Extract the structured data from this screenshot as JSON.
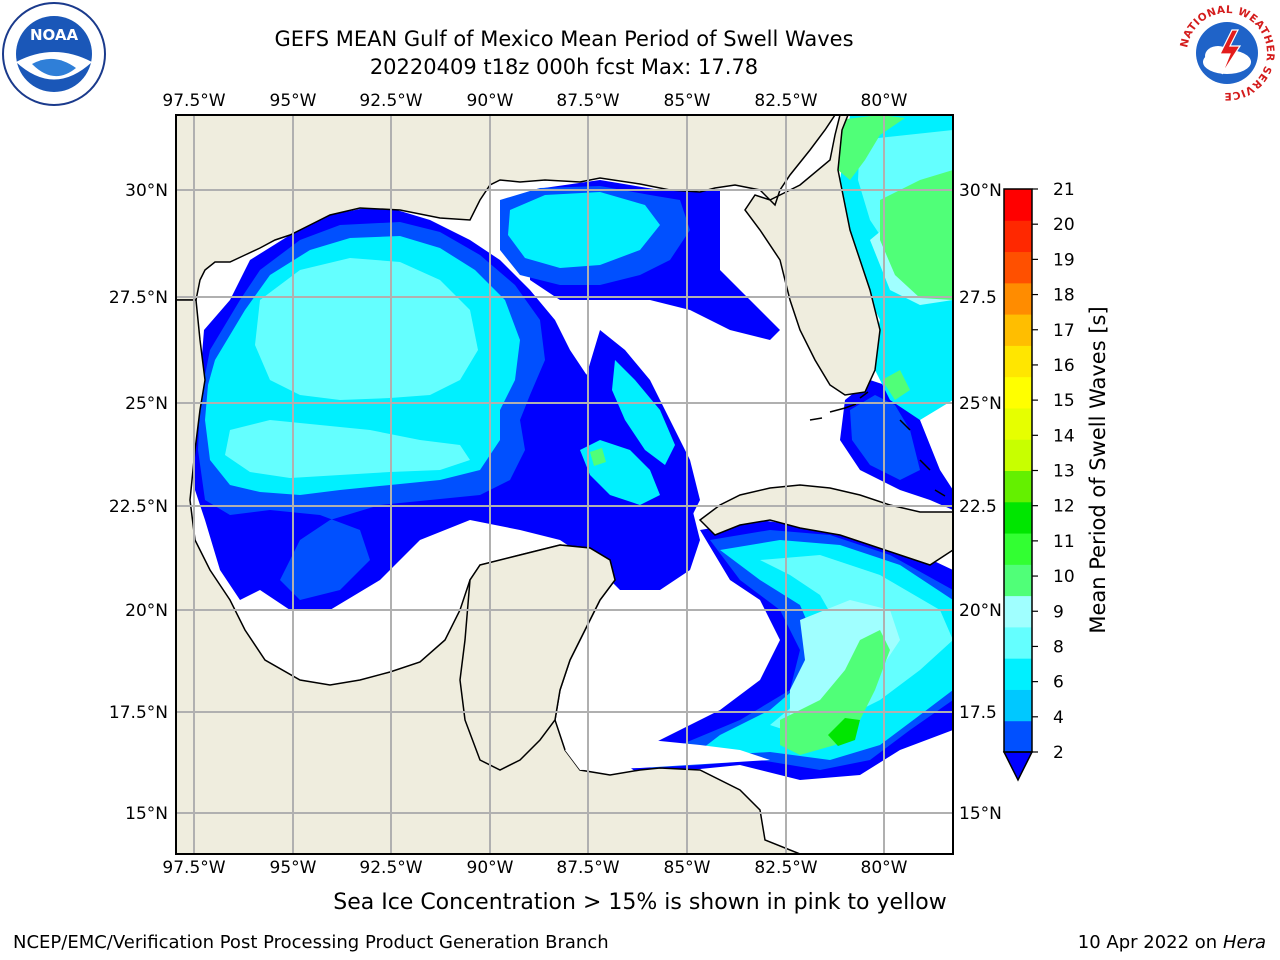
{
  "title": {
    "line1": "GEFS MEAN Gulf of Mexico Mean Period of Swell Waves",
    "line2": "20220409 t18z 000h fcst   Max: 17.78"
  },
  "map": {
    "lon_ticks": [
      "97.5°W",
      "95°W",
      "92.5°W",
      "90°W",
      "87.5°W",
      "85°W",
      "82.5°W",
      "80°W"
    ],
    "lat_ticks_left": [
      "30°N",
      "27.5°N",
      "25°N",
      "22.5°N",
      "20°N",
      "17.5°N",
      "15°N"
    ],
    "lat_ticks_right": [
      "30°N",
      "27.5",
      "25°N",
      "22.5",
      "20°N",
      "17.5",
      "15°N"
    ],
    "land_color": "#efedde",
    "ocean_no_data_color": "#ffffff",
    "grid": true
  },
  "colorbar": {
    "label": "Mean Period of Swell Waves [s]",
    "ticks": [
      "2",
      "4",
      "6",
      "8",
      "9",
      "10",
      "11",
      "12",
      "13",
      "14",
      "15",
      "16",
      "17",
      "18",
      "19",
      "20",
      "21"
    ],
    "colors": [
      "#0050ff",
      "#00c8ff",
      "#00f0ff",
      "#64ffff",
      "#a0ffff",
      "#50ff78",
      "#32ff32",
      "#00e600",
      "#64f000",
      "#c8ff00",
      "#e6ff00",
      "#ffff00",
      "#ffe600",
      "#ffbe00",
      "#ff8c00",
      "#ff5000",
      "#ff2800",
      "#ff0000"
    ],
    "extend_low_color": "#0000ff"
  },
  "footer": {
    "sea_ice": "Sea Ice Concentration > 15% is shown in pink to yellow",
    "branch": "NCEP/EMC/Verification Post Processing Product Generation Branch",
    "date": "10 Apr 2022 on",
    "host": "Hera"
  },
  "logos": {
    "noaa": "NOAA",
    "nws_ring": "NATIONAL WEATHER SERVICE"
  }
}
